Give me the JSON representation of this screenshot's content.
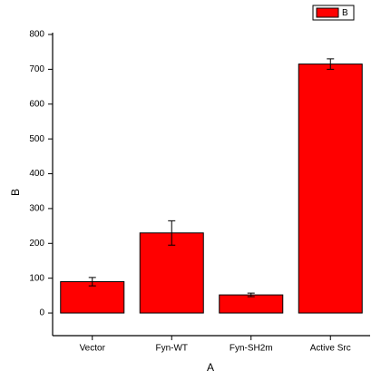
{
  "chart_data": {
    "type": "bar",
    "x_label": "A",
    "y_label": "B",
    "categories": [
      "Vector",
      "Fyn-WT",
      "Fyn-SH2m",
      "Active Src"
    ],
    "series": [
      {
        "name": "B",
        "color": "#ff0000",
        "values": [
          90,
          230,
          52,
          715
        ],
        "errors": [
          12,
          35,
          5,
          15
        ]
      }
    ],
    "ylim": [
      -65,
      800
    ],
    "yticks": [
      0,
      100,
      200,
      300,
      400,
      500,
      600,
      700,
      800
    ],
    "legend": "top-right"
  }
}
